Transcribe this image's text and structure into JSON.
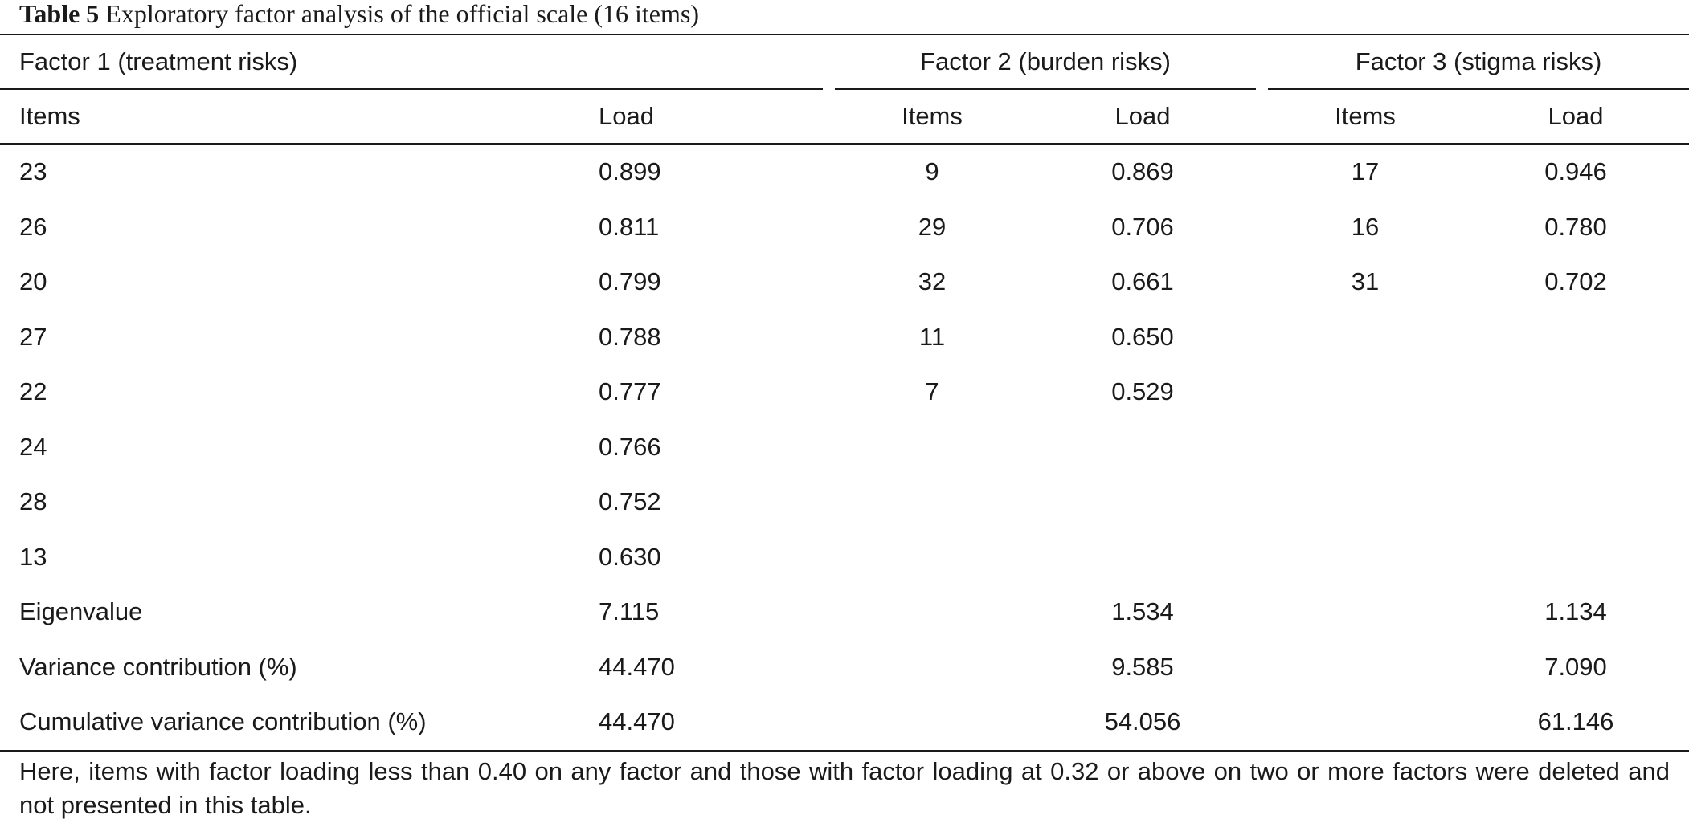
{
  "caption": {
    "label": "Table 5",
    "title": "Exploratory factor analysis of the official scale (16 items)"
  },
  "factors": [
    {
      "name": "Factor 1 (treatment risks)"
    },
    {
      "name": "Factor 2 (burden risks)"
    },
    {
      "name": "Factor 3 (stigma risks)"
    }
  ],
  "col_headers": {
    "items": "Items",
    "load": "Load"
  },
  "rows": [
    {
      "f1_item": "23",
      "f1_load": "0.899",
      "f2_item": "9",
      "f2_load": "0.869",
      "f3_item": "17",
      "f3_load": "0.946"
    },
    {
      "f1_item": "26",
      "f1_load": "0.811",
      "f2_item": "29",
      "f2_load": "0.706",
      "f3_item": "16",
      "f3_load": "0.780"
    },
    {
      "f1_item": "20",
      "f1_load": "0.799",
      "f2_item": "32",
      "f2_load": "0.661",
      "f3_item": "31",
      "f3_load": "0.702"
    },
    {
      "f1_item": "27",
      "f1_load": "0.788",
      "f2_item": "11",
      "f2_load": "0.650",
      "f3_item": "",
      "f3_load": ""
    },
    {
      "f1_item": "22",
      "f1_load": "0.777",
      "f2_item": "7",
      "f2_load": "0.529",
      "f3_item": "",
      "f3_load": ""
    },
    {
      "f1_item": "24",
      "f1_load": "0.766",
      "f2_item": "",
      "f2_load": "",
      "f3_item": "",
      "f3_load": ""
    },
    {
      "f1_item": "28",
      "f1_load": "0.752",
      "f2_item": "",
      "f2_load": "",
      "f3_item": "",
      "f3_load": ""
    },
    {
      "f1_item": "13",
      "f1_load": "0.630",
      "f2_item": "",
      "f2_load": "",
      "f3_item": "",
      "f3_load": ""
    }
  ],
  "summary": [
    {
      "label": "Eigenvalue",
      "f1": "7.115",
      "f2": "1.534",
      "f3": "1.134"
    },
    {
      "label": "Variance contribution (%)",
      "f1": "44.470",
      "f2": "9.585",
      "f3": "7.090"
    },
    {
      "label": "Cumulative variance contribution (%)",
      "f1": "44.470",
      "f2": "54.056",
      "f3": "61.146"
    }
  ],
  "note": "Here, items with factor loading less than 0.40 on any factor and those with factor loading at 0.32 or above on two or more factors were deleted and not presented in this table."
}
